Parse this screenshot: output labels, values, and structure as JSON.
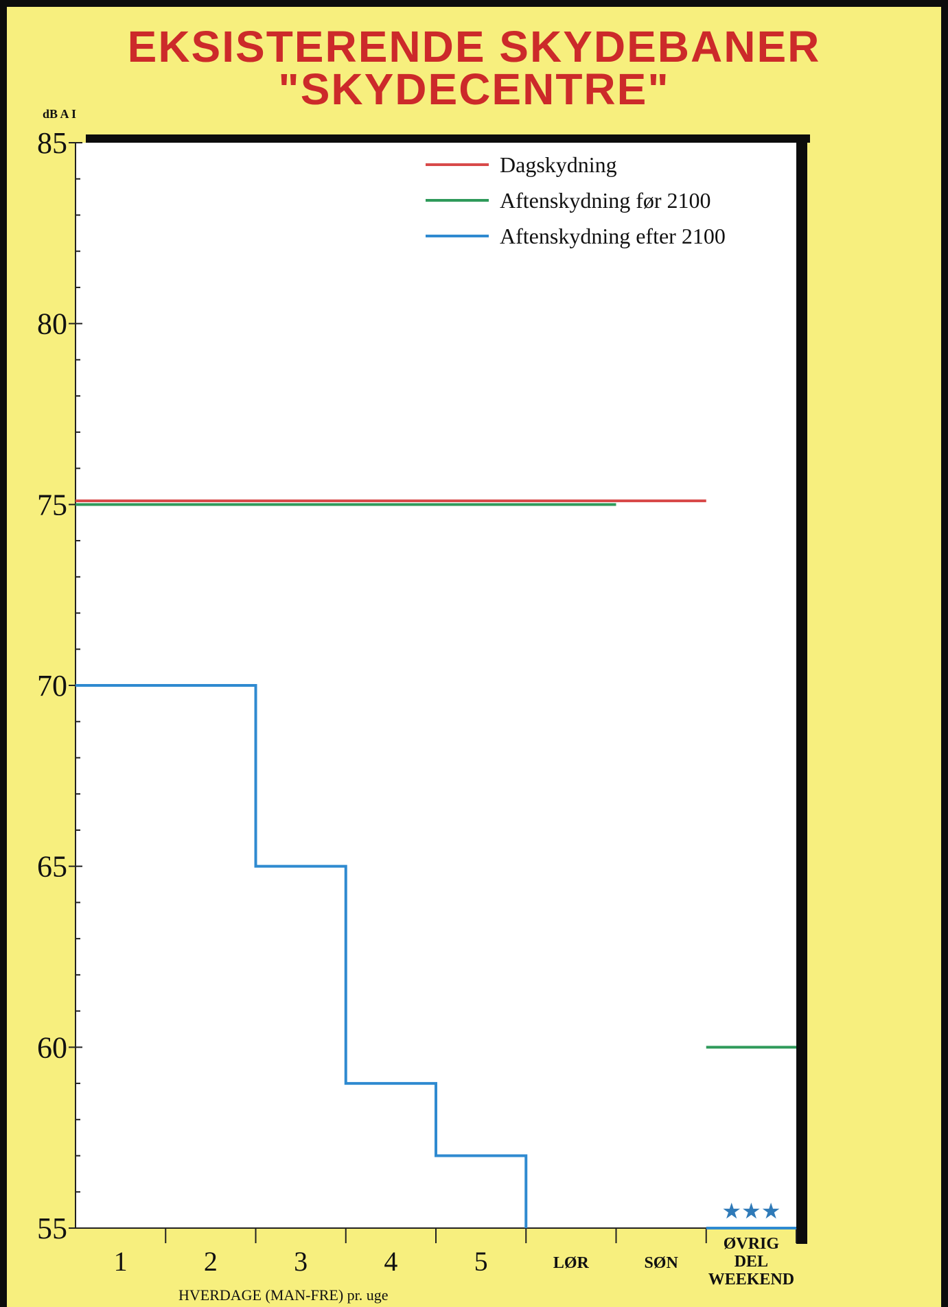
{
  "title_line1": "EKSISTERENDE SKYDEBANER",
  "title_line2": "\"SKYDECENTRE\"",
  "colors": {
    "background": "#f7ef7e",
    "title": "#cc2a2a",
    "frame": "#0c0c0c"
  },
  "chart_data": {
    "type": "line",
    "title": "EKSISTERENDE SKYDEBANER \"SKYDECENTRE\"",
    "ylabel": "dB A I",
    "xlabel": "HVERDAGE (MAN-FRE) pr. uge",
    "ylim": [
      55,
      85
    ],
    "yticks": [
      55,
      60,
      65,
      70,
      75,
      80,
      85
    ],
    "categories": [
      "1",
      "2",
      "3",
      "4",
      "5",
      "LØR",
      "SØN",
      "ØVRIG DEL WEEKEND"
    ],
    "legend_position": "top-right",
    "grid": false,
    "series": [
      {
        "name": "Dagskydning",
        "color": "#d84a4a",
        "step": true,
        "values": [
          75.1,
          75.1,
          75.1,
          75.1,
          75.1,
          75.1,
          75.1,
          null
        ]
      },
      {
        "name": "Aftenskydning før 2100",
        "color": "#2f9a5a",
        "step": true,
        "values": [
          75,
          75,
          75,
          75,
          75,
          75,
          null,
          60
        ]
      },
      {
        "name": "Aftenskydning efter 2100",
        "color": "#2f8ad0",
        "step": true,
        "values": [
          70,
          70,
          65,
          59,
          57,
          null,
          null,
          55
        ]
      }
    ],
    "annotations": [
      {
        "category": "ØVRIG DEL WEEKEND",
        "text": "★★★",
        "color": "#2f7ab8"
      }
    ]
  }
}
